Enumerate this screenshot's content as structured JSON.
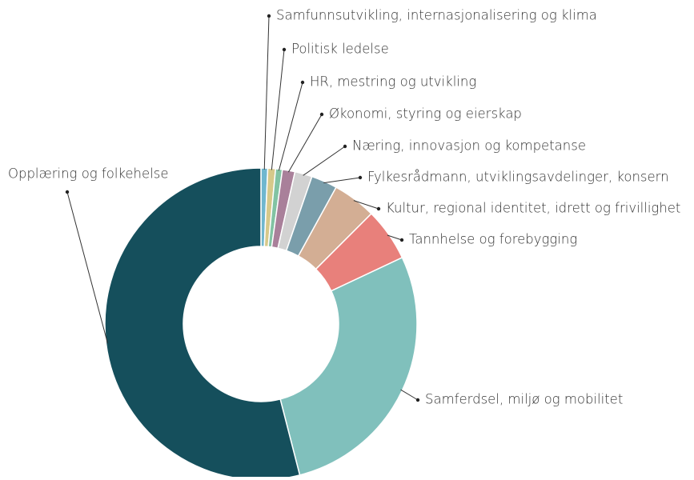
{
  "chart_data": {
    "type": "pie",
    "categories": [
      "Samfunnsutvikling, internasjonalisering og klima",
      "Politisk ledelse",
      "HR, mestring og utvikling",
      "Økonomi, styring og eierskap",
      "Næring, innovasjon og kompetanse",
      "Fylkesrådmann, utviklingsavdelinger, konsern",
      "Kultur, regional identitet, idrett og frivillighet",
      "Tannhelse og forebygging",
      "Samferdsel, miljø og mobilitet",
      "Opplæring og folkehelse"
    ],
    "values": [
      0.7,
      0.8,
      0.7,
      1.3,
      1.8,
      2.7,
      4.5,
      5.5,
      28,
      54
    ],
    "colors": [
      "#6fb7cf",
      "#d6c98a",
      "#82c3a3",
      "#a9809a",
      "#d2d2d2",
      "#7a9eab",
      "#d3ae94",
      "#e8807b",
      "#80c0bc",
      "#154f5c"
    ]
  }
}
